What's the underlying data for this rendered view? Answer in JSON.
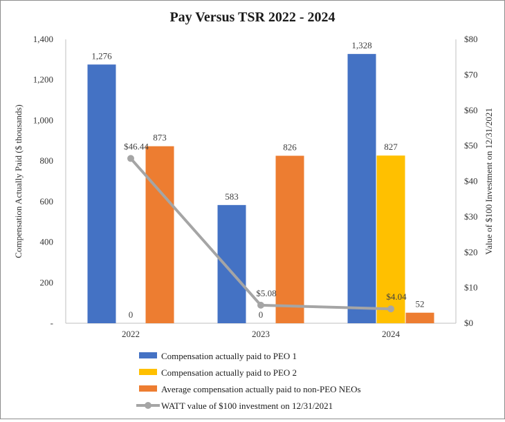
{
  "chart_data": {
    "type": "bar",
    "title": "Pay Versus TSR 2022 - 2024",
    "categories": [
      "2022",
      "2023",
      "2024"
    ],
    "ylabel": "Compensation Actually Paid ($ thousands)",
    "y2label": "Value of $100 Investment on 12/31/2021",
    "ylim": [
      0,
      1400
    ],
    "y2lim": [
      0,
      80
    ],
    "yticks": [
      "-",
      "200",
      "400",
      "600",
      "800",
      "1,000",
      "1,200",
      "1,400"
    ],
    "y2ticks": [
      "$0",
      "$10",
      "$20",
      "$30",
      "$40",
      "$50",
      "$60",
      "$70",
      "$80"
    ],
    "grid": false,
    "legend_position": "bottom",
    "series": [
      {
        "name": "Compensation actually paid to PEO 1",
        "kind": "bar",
        "color": "#4472C4",
        "values": [
          1276,
          583,
          1328
        ],
        "labels": [
          "1,276",
          "583",
          "1,328"
        ]
      },
      {
        "name": "Compensation actually paid to PEO 2",
        "kind": "bar",
        "color": "#FFC000",
        "values": [
          0,
          0,
          827
        ],
        "labels": [
          "0",
          "0",
          "827"
        ]
      },
      {
        "name": "Average compensation actually paid to non-PEO NEOs",
        "kind": "bar",
        "color": "#ED7D31",
        "values": [
          873,
          826,
          52
        ],
        "labels": [
          "873",
          "826",
          "52"
        ]
      },
      {
        "name": "WATT value of $100 investment on 12/31/2021",
        "kind": "line",
        "axis": "right",
        "color": "#A5A5A5",
        "values": [
          46.44,
          5.08,
          4.04
        ],
        "labels": [
          "$46.44",
          "$5.08",
          "$4.04"
        ]
      }
    ]
  }
}
